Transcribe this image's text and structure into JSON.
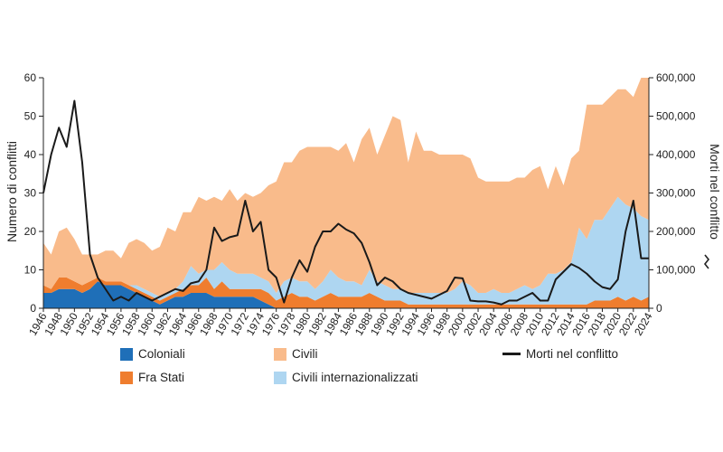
{
  "chart_data": {
    "type": "area",
    "ylabel": "Numero di conflitti",
    "y2label": "Morti nel conflitto",
    "ylim": [
      0,
      60
    ],
    "y2lim": [
      0,
      600000
    ],
    "yticks": [
      0,
      10,
      20,
      30,
      40,
      50,
      60
    ],
    "y2tick_labels": [
      "0",
      "100,000",
      "200,000",
      "300,000",
      "400,000",
      "500,000",
      "600,000"
    ],
    "x_ticks": [
      1946,
      1948,
      1950,
      1952,
      1954,
      1956,
      1958,
      1960,
      1962,
      1964,
      1966,
      1968,
      1970,
      1972,
      1974,
      1976,
      1978,
      1980,
      1982,
      1984,
      1986,
      1988,
      1990,
      1992,
      1994,
      1996,
      1998,
      2000,
      2002,
      2004,
      2006,
      2008,
      2010,
      2012,
      2014,
      2016,
      2018,
      2020,
      2022,
      2024
    ],
    "x": [
      1946,
      1947,
      1948,
      1949,
      1950,
      1951,
      1952,
      1953,
      1954,
      1955,
      1956,
      1957,
      1958,
      1959,
      1960,
      1961,
      1962,
      1963,
      1964,
      1965,
      1966,
      1967,
      1968,
      1969,
      1970,
      1971,
      1972,
      1973,
      1974,
      1975,
      1976,
      1977,
      1978,
      1979,
      1980,
      1981,
      1982,
      1983,
      1984,
      1985,
      1986,
      1987,
      1988,
      1989,
      1990,
      1991,
      1992,
      1993,
      1994,
      1995,
      1996,
      1997,
      1998,
      1999,
      2000,
      2001,
      2002,
      2003,
      2004,
      2005,
      2006,
      2007,
      2008,
      2009,
      2010,
      2011,
      2012,
      2013,
      2014,
      2015,
      2016,
      2017,
      2018,
      2019,
      2020,
      2021,
      2022,
      2023,
      2024
    ],
    "series": [
      {
        "name": "Coloniali",
        "color": "#1f6fb8",
        "values": [
          4,
          4,
          5,
          5,
          5,
          4,
          5,
          7,
          6,
          6,
          6,
          5,
          4,
          3,
          2,
          1,
          2,
          3,
          3,
          4,
          4,
          4,
          3,
          3,
          3,
          3,
          3,
          3,
          2,
          1,
          0,
          0,
          0,
          0,
          0,
          0,
          0,
          0,
          0,
          0,
          0,
          0,
          0,
          0,
          0,
          0,
          0,
          0,
          0,
          0,
          0,
          0,
          0,
          0,
          0,
          0,
          0,
          0,
          0,
          0,
          0,
          0,
          0,
          0,
          0,
          0,
          0,
          0,
          0,
          0,
          0,
          0,
          0,
          0,
          0,
          0,
          0,
          0,
          0
        ]
      },
      {
        "name": "Fra Stati",
        "color": "#ef7d2e",
        "values": [
          2,
          1,
          3,
          3,
          2,
          2,
          2,
          1,
          1,
          1,
          1,
          1,
          1,
          1,
          1,
          1,
          1,
          1,
          2,
          2,
          2,
          4,
          2,
          4,
          2,
          2,
          2,
          2,
          3,
          3,
          2,
          3,
          4,
          3,
          3,
          2,
          3,
          4,
          3,
          3,
          3,
          3,
          4,
          3,
          2,
          2,
          2,
          1,
          1,
          1,
          1,
          1,
          1,
          1,
          1,
          1,
          1,
          1,
          1,
          1,
          1,
          1,
          1,
          1,
          1,
          1,
          1,
          1,
          1,
          1,
          1,
          2,
          2,
          2,
          3,
          2,
          3,
          2,
          3
        ]
      },
      {
        "name": "Civili internazionalizzati",
        "color": "#aed6f1",
        "values": [
          0,
          0,
          0,
          0,
          0,
          0,
          0,
          0,
          0,
          0,
          0,
          0,
          1,
          1,
          1,
          1,
          1,
          1,
          2,
          5,
          3,
          2,
          5,
          5,
          5,
          4,
          4,
          4,
          3,
          3,
          2,
          4,
          4,
          4,
          4,
          3,
          4,
          6,
          5,
          4,
          4,
          3,
          6,
          4,
          4,
          3,
          3,
          3,
          3,
          3,
          3,
          3,
          3,
          4,
          6,
          5,
          3,
          3,
          4,
          3,
          3,
          4,
          5,
          4,
          5,
          8,
          8,
          9,
          11,
          20,
          17,
          21,
          21,
          24,
          26,
          25,
          23,
          22,
          20
        ]
      },
      {
        "name": "Civili",
        "color": "#f9bb8b",
        "values": [
          11,
          9,
          12,
          13,
          11,
          8,
          7,
          6,
          8,
          8,
          6,
          11,
          12,
          12,
          11,
          13,
          17,
          15,
          18,
          14,
          20,
          18,
          19,
          16,
          21,
          19,
          21,
          20,
          22,
          25,
          29,
          31,
          30,
          34,
          35,
          37,
          35,
          32,
          33,
          36,
          31,
          38,
          37,
          33,
          39,
          45,
          44,
          34,
          42,
          37,
          37,
          36,
          36,
          35,
          33,
          33,
          30,
          29,
          28,
          29,
          29,
          29,
          28,
          31,
          31,
          22,
          28,
          22,
          27,
          20,
          35,
          30,
          30,
          29,
          28,
          30,
          29,
          36,
          37
        ]
      }
    ],
    "line": {
      "name": "Morti nel conflitto",
      "color": "#1a1a1a",
      "values": [
        300000,
        400000,
        470000,
        420000,
        540000,
        380000,
        140000,
        80000,
        50000,
        20000,
        30000,
        20000,
        40000,
        30000,
        20000,
        30000,
        40000,
        50000,
        45000,
        65000,
        70000,
        100000,
        210000,
        175000,
        185000,
        190000,
        280000,
        200000,
        225000,
        100000,
        80000,
        15000,
        80000,
        125000,
        95000,
        160000,
        200000,
        200000,
        220000,
        205000,
        195000,
        170000,
        120000,
        60000,
        80000,
        70000,
        50000,
        40000,
        35000,
        30000,
        25000,
        35000,
        45000,
        80000,
        78000,
        20000,
        18000,
        18000,
        15000,
        10000,
        20000,
        20000,
        30000,
        40000,
        20000,
        20000,
        75000,
        95000,
        115000,
        105000,
        90000,
        70000,
        55000,
        50000,
        75000,
        200000,
        280000,
        130000,
        130000
      ]
    }
  },
  "legend": {
    "coloniali": "Coloniali",
    "fra_stati": "Fra Stati",
    "civili": "Civili",
    "civili_int": "Civili internazionalizzati",
    "morti": "Morti nel conflitto"
  }
}
